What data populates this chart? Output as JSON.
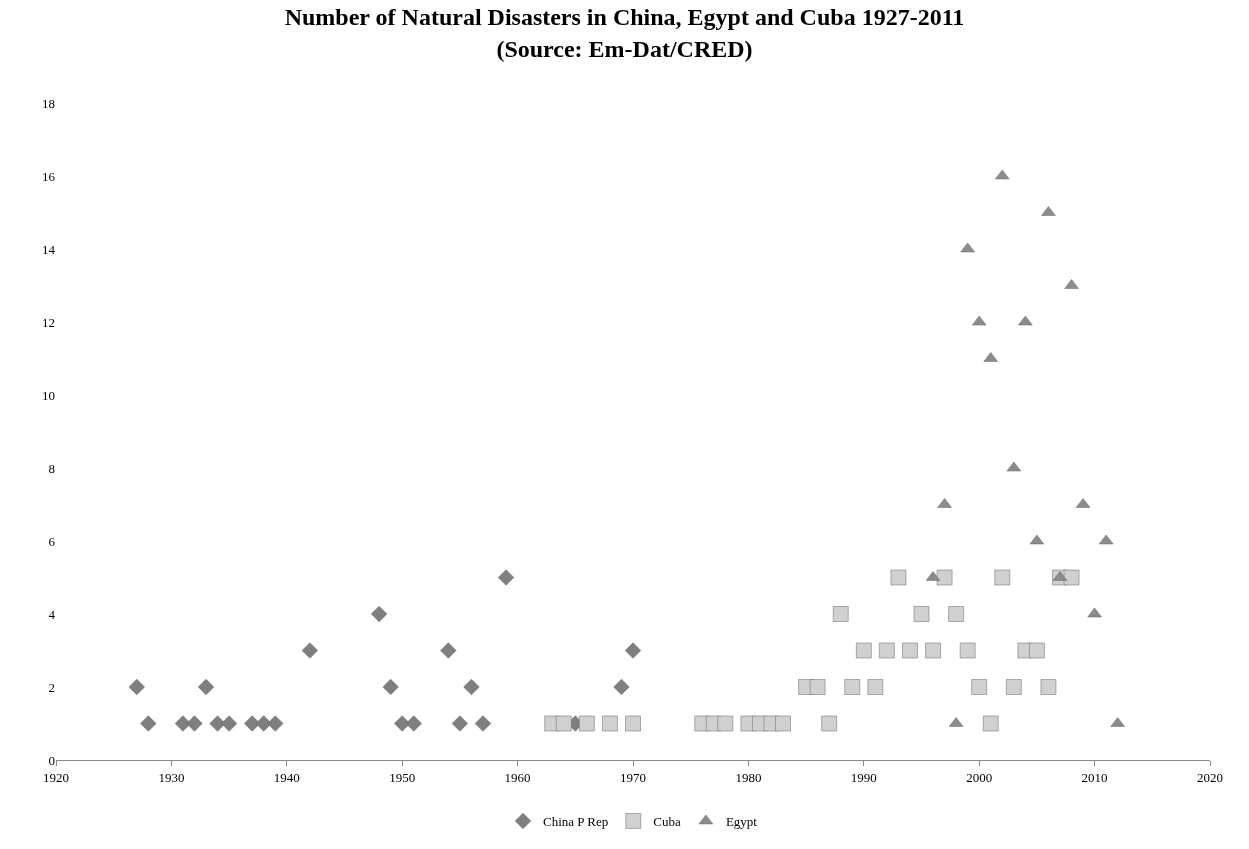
{
  "chart_data": {
    "type": "scatter",
    "title": "Number of Natural Disasters in China, Egypt and Cuba 1927-2011\n(Source: Em-Dat/CRED)",
    "xlim": [
      1920,
      2020
    ],
    "xticks": [
      1920,
      1930,
      1940,
      1950,
      1960,
      1970,
      1980,
      1990,
      2000,
      2010,
      2020
    ],
    "ylim": [
      0,
      18
    ],
    "yticks": [
      0,
      2,
      4,
      6,
      8,
      10,
      12,
      14,
      16,
      18
    ],
    "legend": "bottom",
    "series": [
      {
        "name": "China P Rep",
        "color": "#7f7f7f",
        "marker": "diamond",
        "x": [
          1927,
          1928,
          1931,
          1932,
          1933,
          1934,
          1935,
          1937,
          1938,
          1939,
          1942,
          1948,
          1949,
          1950,
          1951,
          1954,
          1955,
          1956,
          1957,
          1959,
          1965,
          1969,
          1970
        ],
        "values": [
          2,
          1,
          1,
          1,
          2,
          1,
          1,
          1,
          1,
          1,
          3,
          4,
          2,
          1,
          1,
          3,
          1,
          2,
          1,
          5,
          1,
          2,
          3
        ]
      },
      {
        "name": "Cuba",
        "color": "#d0d0d0",
        "marker": "square",
        "x": [
          1963,
          1964,
          1966,
          1968,
          1970,
          1976,
          1977,
          1978,
          1980,
          1981,
          1982,
          1983,
          1985,
          1986,
          1987,
          1988,
          1989,
          1990,
          1991,
          1992,
          1993,
          1994,
          1995,
          1996,
          1997,
          1998,
          1999,
          2000,
          2001,
          2002,
          2003,
          2004,
          2005,
          2006,
          2007,
          2008
        ],
        "values": [
          1,
          1,
          1,
          1,
          1,
          1,
          1,
          1,
          1,
          1,
          1,
          1,
          2,
          2,
          1,
          4,
          2,
          3,
          2,
          3,
          5,
          3,
          4,
          3,
          5,
          4,
          3,
          2,
          1,
          5,
          2,
          3,
          3,
          2,
          5,
          5
        ]
      },
      {
        "name": "Egypt",
        "color": "#8c8c8c",
        "marker": "triangle",
        "x": [
          1996,
          1997,
          1998,
          1999,
          2000,
          2001,
          2002,
          2003,
          2004,
          2005,
          2006,
          2007,
          2008,
          2009,
          2010,
          2011,
          2012
        ],
        "values": [
          5,
          7,
          1,
          14,
          12,
          11,
          16,
          8,
          12,
          6,
          15,
          5,
          13,
          7,
          4,
          6,
          1
        ]
      }
    ]
  }
}
